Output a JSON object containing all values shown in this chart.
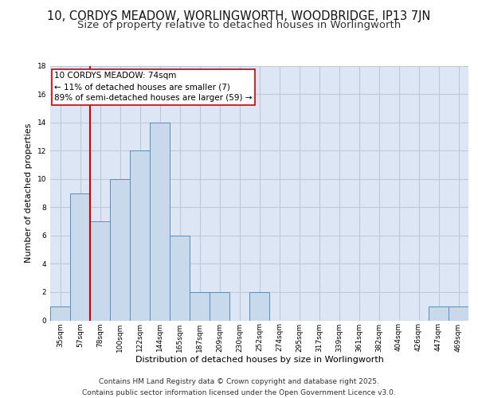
{
  "title": "10, CORDYS MEADOW, WORLINGWORTH, WOODBRIDGE, IP13 7JN",
  "subtitle": "Size of property relative to detached houses in Worlingworth",
  "xlabel": "Distribution of detached houses by size in Worlingworth",
  "ylabel": "Number of detached properties",
  "categories": [
    "35sqm",
    "57sqm",
    "78sqm",
    "100sqm",
    "122sqm",
    "144sqm",
    "165sqm",
    "187sqm",
    "209sqm",
    "230sqm",
    "252sqm",
    "274sqm",
    "295sqm",
    "317sqm",
    "339sqm",
    "361sqm",
    "382sqm",
    "404sqm",
    "426sqm",
    "447sqm",
    "469sqm"
  ],
  "values": [
    1,
    9,
    7,
    10,
    12,
    14,
    6,
    2,
    2,
    0,
    2,
    0,
    0,
    0,
    0,
    0,
    0,
    0,
    0,
    1,
    1
  ],
  "bar_color": "#c9d9ec",
  "bar_edge_color": "#5b8db8",
  "grid_color": "#c0c8d8",
  "background_color": "#dce6f5",
  "vline_x": 1.5,
  "vline_color": "#cc0000",
  "annotation_title": "10 CORDYS MEADOW: 74sqm",
  "annotation_line1": "← 11% of detached houses are smaller (7)",
  "annotation_line2": "89% of semi-detached houses are larger (59) →",
  "annotation_box_edge": "#cc0000",
  "ylim": [
    0,
    18
  ],
  "yticks": [
    0,
    2,
    4,
    6,
    8,
    10,
    12,
    14,
    16,
    18
  ],
  "footer1": "Contains HM Land Registry data © Crown copyright and database right 2025.",
  "footer2": "Contains public sector information licensed under the Open Government Licence v3.0.",
  "title_fontsize": 10.5,
  "subtitle_fontsize": 9.5,
  "label_fontsize": 8,
  "tick_fontsize": 6.5,
  "footer_fontsize": 6.5,
  "ann_fontsize": 7.5
}
